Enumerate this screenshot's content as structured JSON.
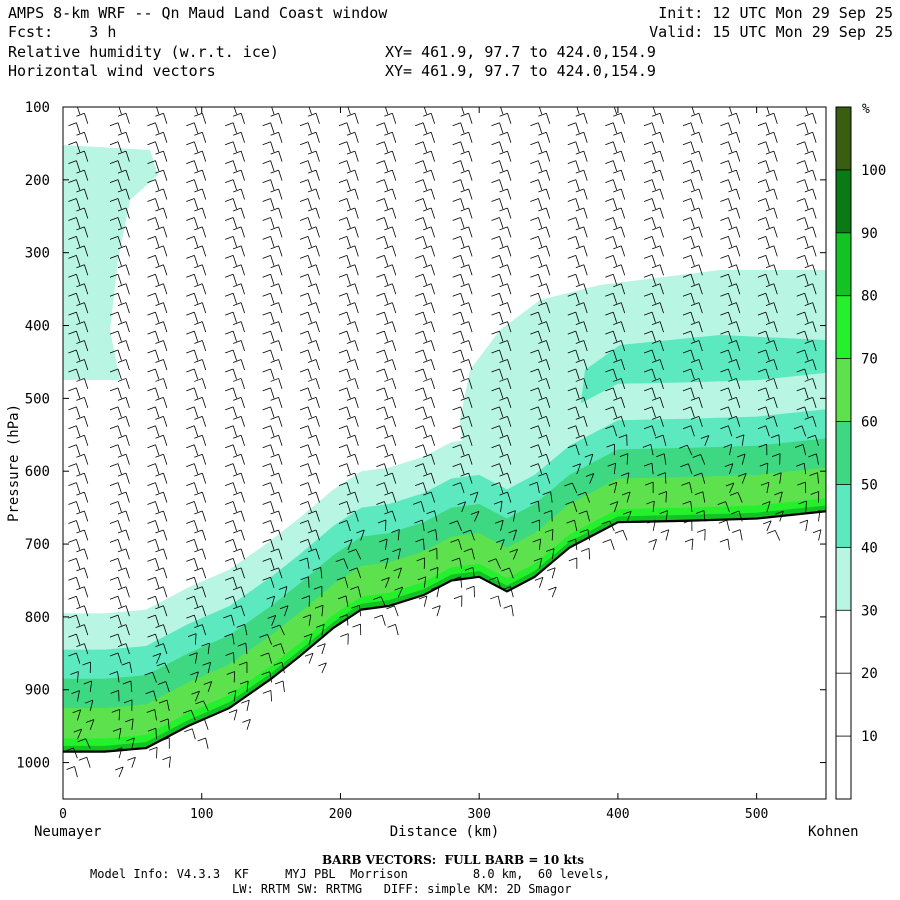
{
  "header": {
    "title": "AMPS 8-km WRF -- Qn Maud Land Coast window",
    "fcst": "Fcst:    3 h",
    "line3": "Relative humidity (w.r.t. ice)",
    "line4": "Horizontal wind vectors",
    "xy3": "XY= 461.9, 97.7 to 424.0,154.9",
    "xy4": "XY= 461.9, 97.7 to 424.0,154.9",
    "init": "Init: 12 UTC Mon 29 Sep 25",
    "valid": "Valid: 15 UTC Mon 29 Sep 25"
  },
  "footer": {
    "barb_note": "BARB VECTORS:  FULL BARB = 10 kts",
    "model_info": "Model Info: V4.3.3  KF     MYJ PBL  Morrison         8.0 km,  60 levels,",
    "model_info2": "LW: RRTM SW: RRTMG   DIFF: simple KM: 2D Smagor"
  },
  "chart_data": {
    "type": "heatmap",
    "title": "Relative humidity (w.r.t. ice) and horizontal wind vectors — cross section",
    "xlabel": "Distance (km)",
    "ylabel": "Pressure (hPa)",
    "xlim": [
      0,
      550
    ],
    "ylim": [
      1050,
      100
    ],
    "x_ticks": [
      0,
      100,
      200,
      300,
      400,
      500
    ],
    "y_ticks": [
      100,
      200,
      300,
      400,
      500,
      600,
      700,
      800,
      900,
      1000
    ],
    "left_endpoint": "Neumayer",
    "right_endpoint": "Kohnen",
    "colorbar_unit": "%",
    "colorbar_ticks": [
      10,
      20,
      30,
      40,
      50,
      60,
      70,
      80,
      90,
      100
    ],
    "colorbar_levels": [
      {
        "from": 0,
        "to": 30,
        "color": "#ffffff"
      },
      {
        "from": 30,
        "to": 40,
        "color": "#b8f5e2"
      },
      {
        "from": 40,
        "to": 50,
        "color": "#5de9c0"
      },
      {
        "from": 50,
        "to": 60,
        "color": "#3ed782"
      },
      {
        "from": 60,
        "to": 70,
        "color": "#5de24e"
      },
      {
        "from": 70,
        "to": 80,
        "color": "#24f02c"
      },
      {
        "from": 80,
        "to": 90,
        "color": "#12c324"
      },
      {
        "from": 90,
        "to": 100,
        "color": "#097a14"
      },
      {
        "from": 100,
        "to": 110,
        "color": "#3a5e10"
      }
    ],
    "terrain_surface": {
      "x": [
        0,
        30,
        60,
        90,
        120,
        150,
        170,
        195,
        215,
        235,
        260,
        280,
        300,
        320,
        340,
        365,
        385,
        400,
        450,
        500,
        550
      ],
      "p": [
        985,
        985,
        980,
        950,
        925,
        885,
        855,
        815,
        790,
        785,
        770,
        750,
        745,
        765,
        745,
        705,
        685,
        670,
        668,
        665,
        655
      ]
    },
    "rh_regions": [
      {
        "level": "30-40",
        "desc": "upper-left moist tongue",
        "x": [
          0,
          65
        ],
        "p": [
          140,
          470
        ]
      },
      {
        "level": "30-40",
        "desc": "mid-troposphere layer right side",
        "x": [
          285,
          550
        ],
        "p": [
          325,
          660
        ]
      },
      {
        "level": "40-50",
        "desc": "core of upper layer right side",
        "x": [
          380,
          550
        ],
        "p": [
          410,
          520
        ]
      },
      {
        "level": "30-40",
        "desc": "boundary layer above slope",
        "x": [
          0,
          400
        ],
        "p": [
          690,
          800
        ]
      },
      {
        "level": "50-70",
        "desc": "boundary layer over ice shelf",
        "x": [
          0,
          240
        ],
        "p": [
          800,
          980
        ]
      }
    ],
    "wind_barb_columns_km": [
      15,
      45,
      72,
      100,
      128,
      155,
      182,
      210,
      237,
      265,
      292,
      320,
      348,
      375,
      402,
      430,
      458,
      485,
      512,
      540
    ],
    "barb_note": "full barb = 10 kts"
  }
}
